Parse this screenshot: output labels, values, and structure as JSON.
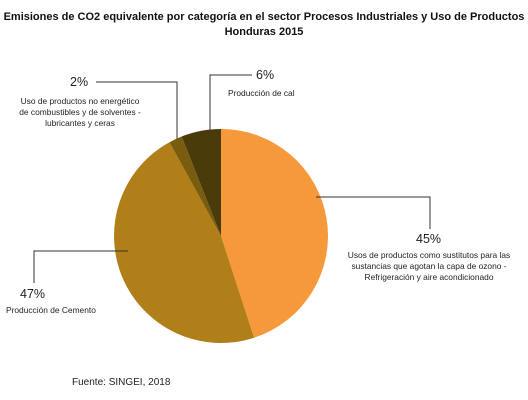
{
  "chart_data": {
    "type": "pie",
    "title": "Emisiones de CO2 equivalente por categoría en el sector Procesos Industriales y Uso de Productos",
    "subtitle": "Honduras 2015",
    "slices": [
      {
        "label": "Usos de productos como sustitutos para las sustancias que agotan la capa de ozono - Refrigeración y aire acondicionado",
        "pct_label": "45%",
        "value": 45,
        "color": "#f5993a"
      },
      {
        "label": "Producción de Cemento",
        "pct_label": "47%",
        "value": 47,
        "color": "#b07f1a"
      },
      {
        "label": "Uso de productos no energético de combustibles y de solventes - lubricantes y ceras",
        "pct_label": "2%",
        "value": 2,
        "color": "#7a5c0e"
      },
      {
        "label": "Producción de cal",
        "pct_label": "6%",
        "value": 6,
        "color": "#4a3c0a"
      }
    ],
    "source": "Fuente: SINGEI, 2018"
  }
}
